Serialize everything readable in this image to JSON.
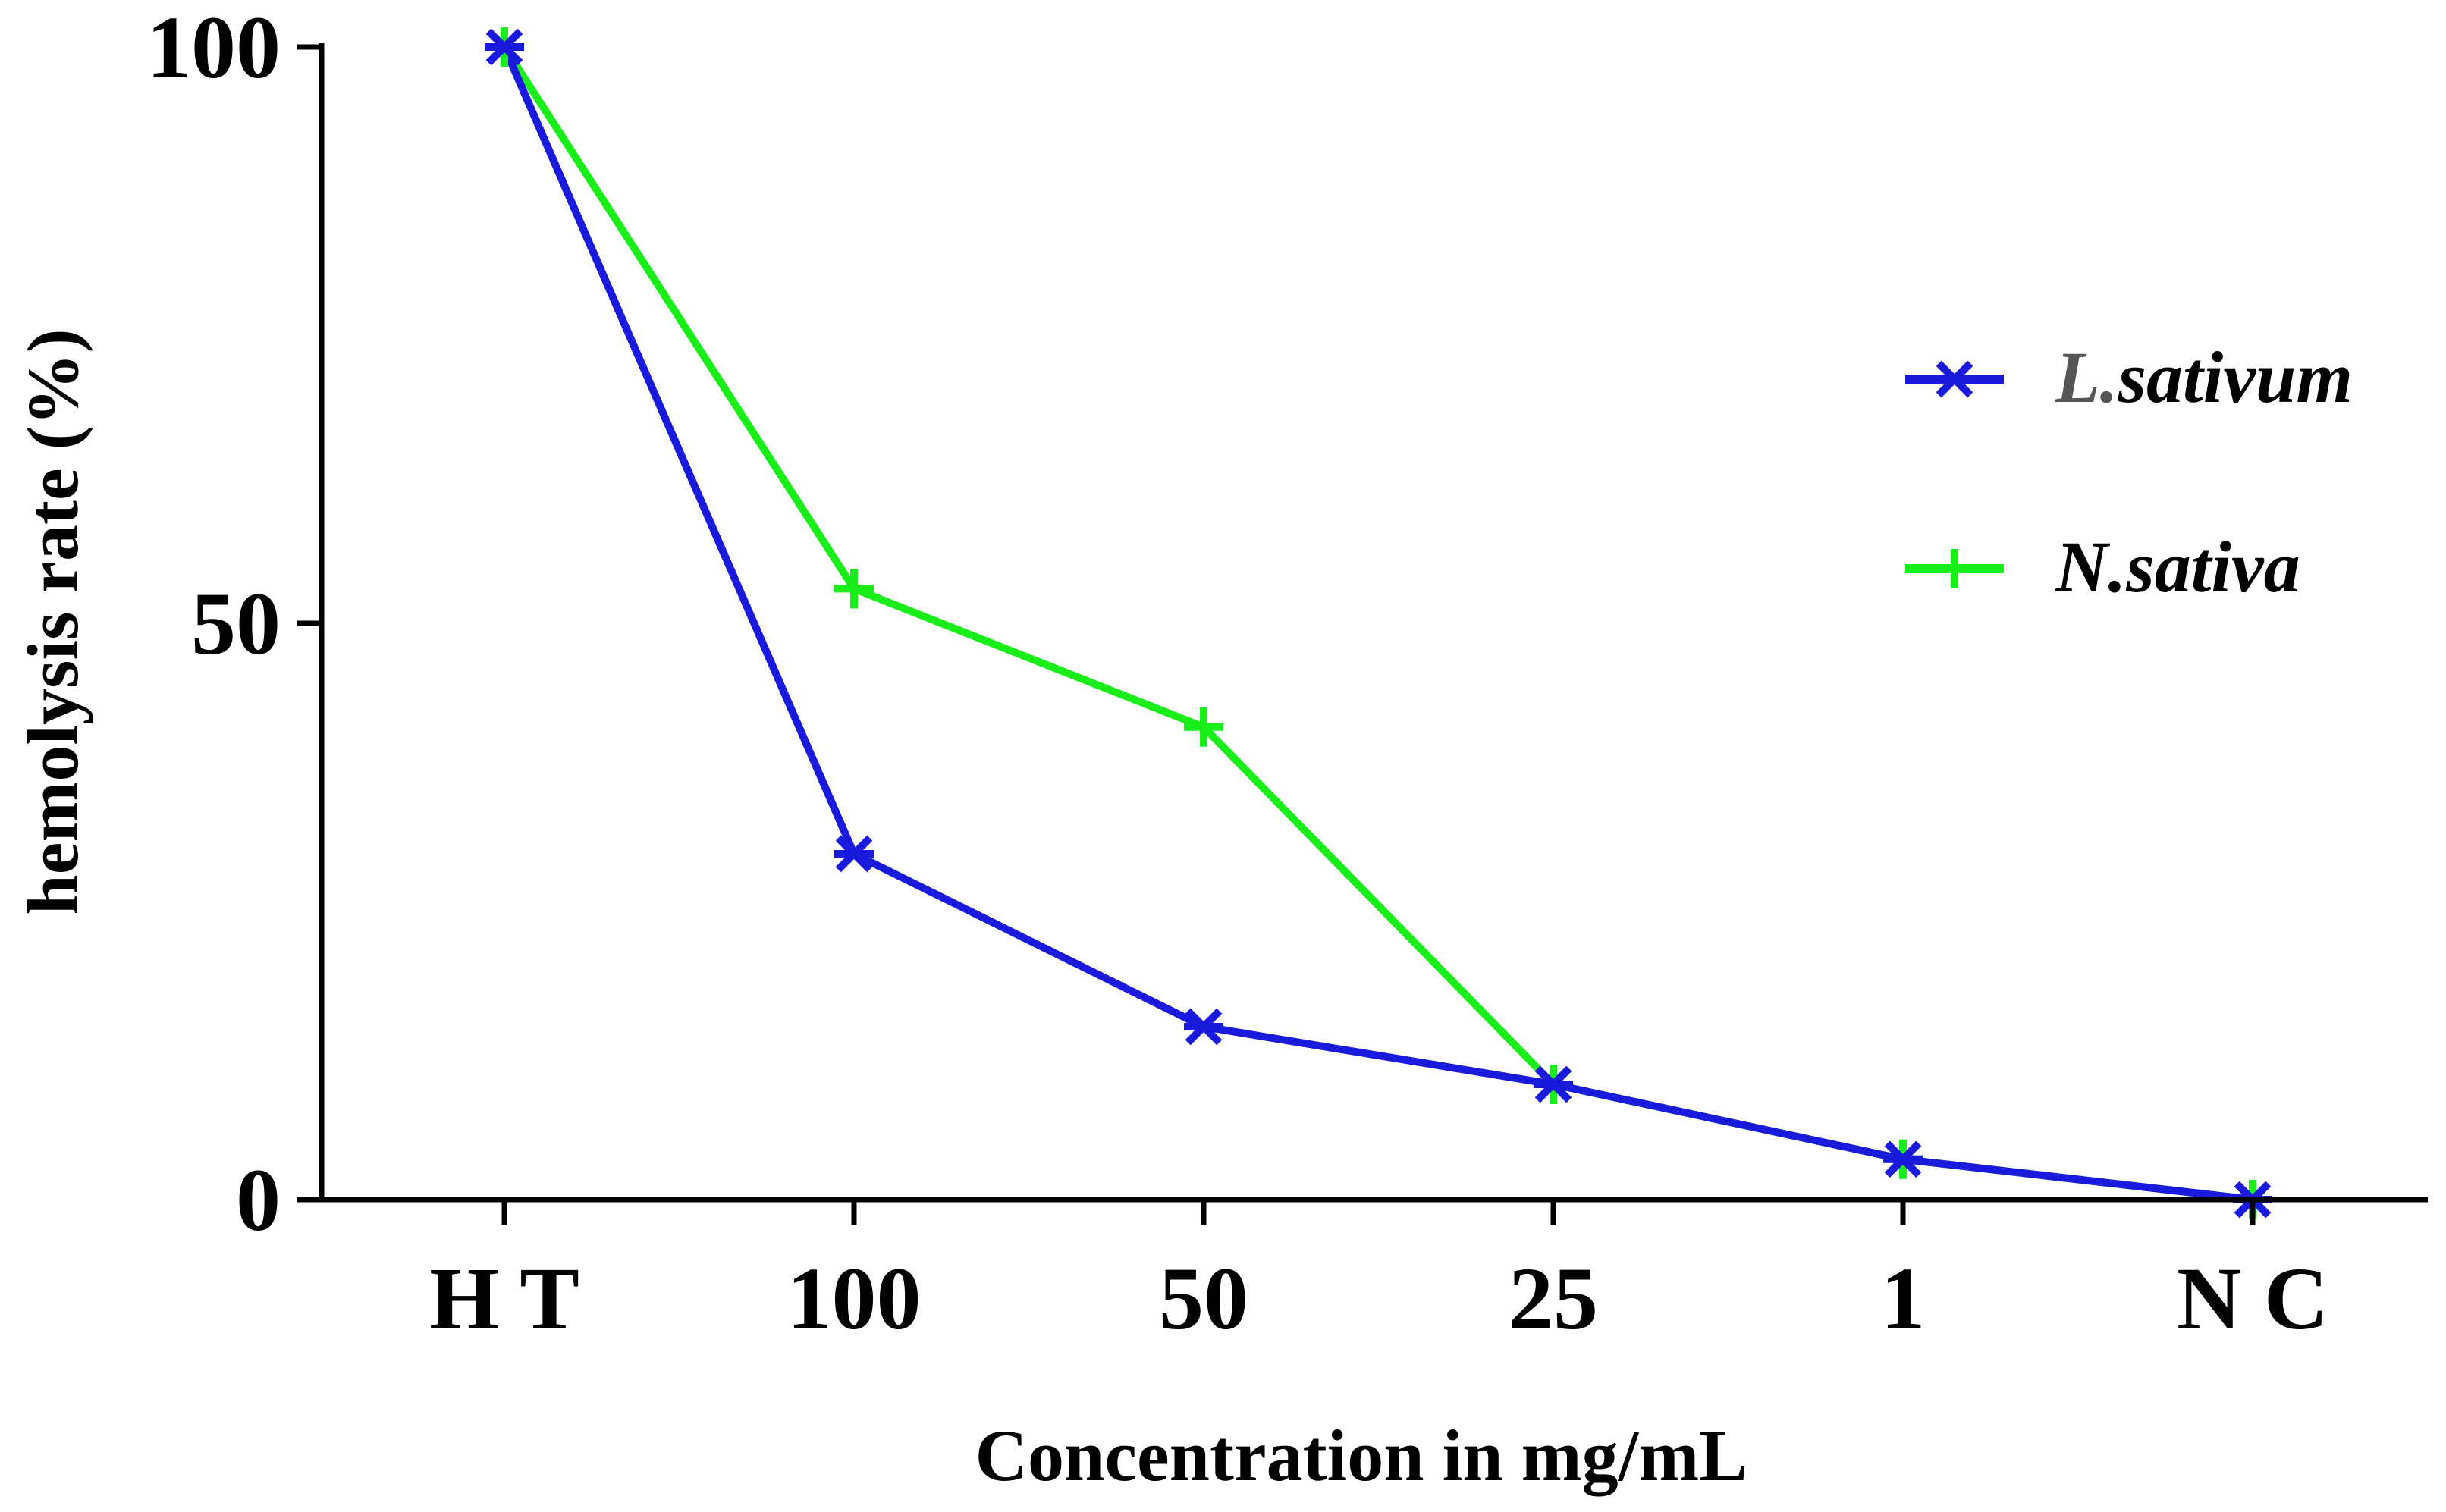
{
  "chart_data": {
    "type": "line",
    "title": "",
    "xlabel": "Concentration in mg/mL",
    "ylabel": "hemolysis rate (%)",
    "categories": [
      "H T",
      "100",
      "50",
      "25",
      "1",
      "N C"
    ],
    "ylim": [
      0,
      100
    ],
    "yticks": [
      "0",
      "50",
      "100"
    ],
    "grid": false,
    "legend_position": "right",
    "series": [
      {
        "name": "L.sativum",
        "name_prefix": "L.",
        "name_suffix": "sativum",
        "color": "#1a1adc",
        "marker": "asterisk",
        "values": [
          100,
          30,
          15,
          10,
          3.5,
          0
        ]
      },
      {
        "name": "N.sativa",
        "name_prefix": "N.",
        "name_suffix": "sativa",
        "color": "#1aee1a",
        "marker": "plus",
        "values": [
          100,
          53,
          41,
          10,
          3.5,
          0
        ]
      }
    ]
  }
}
